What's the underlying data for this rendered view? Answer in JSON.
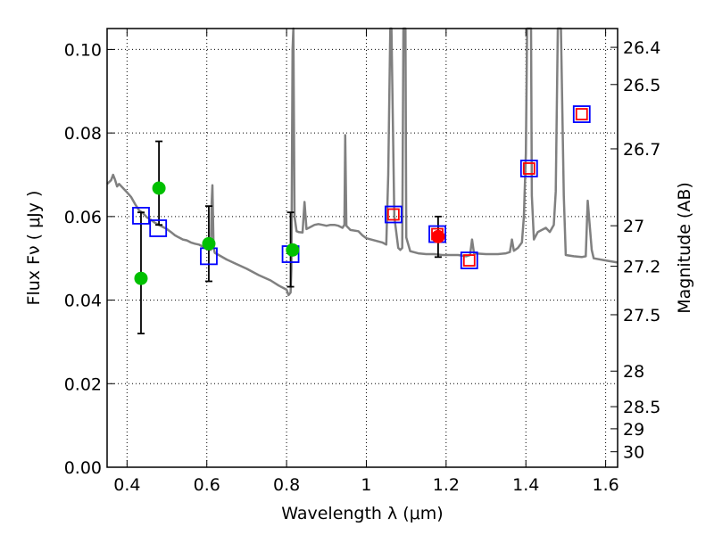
{
  "chart_data": {
    "type": "scatter",
    "xlabel": "Wavelength  λ (μm)",
    "ylabel": "Flux  Fν ( μJy )",
    "ylabel_right": "Magnitude (AB)",
    "xlim": [
      0.35,
      1.63
    ],
    "ylim": [
      0.0,
      0.105
    ],
    "grid": true,
    "x_ticks": [
      0.4,
      0.6,
      0.8,
      1.0,
      1.2,
      1.4,
      1.6
    ],
    "x_tick_labels": [
      "0.4",
      "0.6",
      "0.8",
      "1",
      "1.2",
      "1.4",
      "1.6"
    ],
    "y_ticks": [
      0.0,
      0.02,
      0.04,
      0.06,
      0.08,
      0.1
    ],
    "y_tick_labels": [
      "0.00",
      "0.02",
      "0.04",
      "0.06",
      "0.08",
      "0.10"
    ],
    "right_ticks": [
      {
        "label": "26.4",
        "flux": 0.1005
      },
      {
        "label": "26.5",
        "flux": 0.0916
      },
      {
        "label": "26.7",
        "flux": 0.0762
      },
      {
        "label": "27",
        "flux": 0.0578
      },
      {
        "label": "27.2",
        "flux": 0.0481
      },
      {
        "label": "27.5",
        "flux": 0.0365
      },
      {
        "label": "28",
        "flux": 0.023
      },
      {
        "label": "28.5",
        "flux": 0.0145
      },
      {
        "label": "29",
        "flux": 0.0092
      },
      {
        "label": "30",
        "flux": 0.0037
      }
    ],
    "series": [
      {
        "type": "line",
        "color": "#808080",
        "points": [
          [
            0.35,
            0.0678
          ],
          [
            0.36,
            0.0687
          ],
          [
            0.365,
            0.07
          ],
          [
            0.37,
            0.0688
          ],
          [
            0.375,
            0.0672
          ],
          [
            0.38,
            0.0678
          ],
          [
            0.39,
            0.0668
          ],
          [
            0.4,
            0.0658
          ],
          [
            0.41,
            0.0647
          ],
          [
            0.42,
            0.063
          ],
          [
            0.43,
            0.0615
          ],
          [
            0.44,
            0.0608
          ],
          [
            0.45,
            0.0598
          ],
          [
            0.46,
            0.0592
          ],
          [
            0.47,
            0.0585
          ],
          [
            0.48,
            0.058
          ],
          [
            0.49,
            0.0575
          ],
          [
            0.5,
            0.057
          ],
          [
            0.51,
            0.0563
          ],
          [
            0.52,
            0.0555
          ],
          [
            0.53,
            0.055
          ],
          [
            0.54,
            0.0545
          ],
          [
            0.55,
            0.0543
          ],
          [
            0.56,
            0.0538
          ],
          [
            0.57,
            0.0535
          ],
          [
            0.58,
            0.0533
          ],
          [
            0.59,
            0.0528
          ],
          [
            0.6,
            0.0522
          ],
          [
            0.61,
            0.052
          ],
          [
            0.612,
            0.063
          ],
          [
            0.614,
            0.0675
          ],
          [
            0.617,
            0.0525
          ],
          [
            0.62,
            0.0513
          ],
          [
            0.63,
            0.0508
          ],
          [
            0.65,
            0.0497
          ],
          [
            0.67,
            0.0488
          ],
          [
            0.7,
            0.0475
          ],
          [
            0.73,
            0.046
          ],
          [
            0.76,
            0.0447
          ],
          [
            0.78,
            0.0435
          ],
          [
            0.8,
            0.0425
          ],
          [
            0.805,
            0.0412
          ],
          [
            0.81,
            0.0418
          ],
          [
            0.812,
            0.0475
          ],
          [
            0.815,
            0.1
          ],
          [
            0.817,
            0.105
          ],
          [
            0.82,
            0.06
          ],
          [
            0.825,
            0.0565
          ],
          [
            0.83,
            0.0563
          ],
          [
            0.84,
            0.0562
          ],
          [
            0.845,
            0.0635
          ],
          [
            0.85,
            0.057
          ],
          [
            0.87,
            0.058
          ],
          [
            0.88,
            0.0582
          ],
          [
            0.89,
            0.058
          ],
          [
            0.9,
            0.0578
          ],
          [
            0.91,
            0.058
          ],
          [
            0.92,
            0.058
          ],
          [
            0.93,
            0.0578
          ],
          [
            0.94,
            0.0573
          ],
          [
            0.945,
            0.058
          ],
          [
            0.947,
            0.0795
          ],
          [
            0.95,
            0.0578
          ],
          [
            0.96,
            0.0568
          ],
          [
            0.98,
            0.0565
          ],
          [
            0.99,
            0.0555
          ],
          [
            1.0,
            0.0548
          ],
          [
            1.02,
            0.0543
          ],
          [
            1.04,
            0.0538
          ],
          [
            1.05,
            0.0533
          ],
          [
            1.055,
            0.07
          ],
          [
            1.06,
            0.105
          ],
          [
            1.063,
            0.105
          ],
          [
            1.07,
            0.06
          ],
          [
            1.08,
            0.0525
          ],
          [
            1.085,
            0.052
          ],
          [
            1.09,
            0.0525
          ],
          [
            1.093,
            0.105
          ],
          [
            1.098,
            0.105
          ],
          [
            1.1,
            0.055
          ],
          [
            1.11,
            0.0517
          ],
          [
            1.13,
            0.0512
          ],
          [
            1.15,
            0.051
          ],
          [
            1.17,
            0.051
          ],
          [
            1.19,
            0.0508
          ],
          [
            1.21,
            0.0508
          ],
          [
            1.23,
            0.0508
          ],
          [
            1.25,
            0.0505
          ],
          [
            1.26,
            0.0508
          ],
          [
            1.265,
            0.0545
          ],
          [
            1.27,
            0.0512
          ],
          [
            1.3,
            0.051
          ],
          [
            1.33,
            0.051
          ],
          [
            1.35,
            0.0512
          ],
          [
            1.36,
            0.0515
          ],
          [
            1.365,
            0.0545
          ],
          [
            1.37,
            0.0518
          ],
          [
            1.38,
            0.0525
          ],
          [
            1.39,
            0.0538
          ],
          [
            1.395,
            0.06
          ],
          [
            1.4,
            0.075
          ],
          [
            1.403,
            0.105
          ],
          [
            1.413,
            0.105
          ],
          [
            1.415,
            0.065
          ],
          [
            1.42,
            0.0545
          ],
          [
            1.43,
            0.0563
          ],
          [
            1.44,
            0.0568
          ],
          [
            1.45,
            0.0573
          ],
          [
            1.46,
            0.0563
          ],
          [
            1.47,
            0.058
          ],
          [
            1.475,
            0.066
          ],
          [
            1.48,
            0.105
          ],
          [
            1.488,
            0.105
          ],
          [
            1.495,
            0.065
          ],
          [
            1.5,
            0.0508
          ],
          [
            1.52,
            0.0505
          ],
          [
            1.54,
            0.0503
          ],
          [
            1.55,
            0.0505
          ],
          [
            1.555,
            0.0638
          ],
          [
            1.56,
            0.058
          ],
          [
            1.565,
            0.052
          ],
          [
            1.57,
            0.05
          ],
          [
            1.6,
            0.0495
          ],
          [
            1.63,
            0.049
          ]
        ]
      },
      {
        "type": "errorbars",
        "color": "#000000",
        "points": [
          {
            "x": 0.435,
            "low": 0.032,
            "high": 0.061
          },
          {
            "x": 0.48,
            "low": 0.058,
            "high": 0.078
          },
          {
            "x": 0.605,
            "low": 0.0445,
            "high": 0.0625
          },
          {
            "x": 0.81,
            "low": 0.0432,
            "high": 0.061
          },
          {
            "x": 1.18,
            "low": 0.0503,
            "high": 0.06
          }
        ]
      },
      {
        "type": "scatter",
        "marker": "square",
        "color": "#0000ff",
        "points": [
          {
            "x": 0.435,
            "y": 0.0602
          },
          {
            "x": 0.478,
            "y": 0.0572
          },
          {
            "x": 0.605,
            "y": 0.0505
          },
          {
            "x": 0.81,
            "y": 0.051
          },
          {
            "x": 1.068,
            "y": 0.0605
          },
          {
            "x": 1.178,
            "y": 0.0558
          },
          {
            "x": 1.258,
            "y": 0.0495
          },
          {
            "x": 1.408,
            "y": 0.0715
          },
          {
            "x": 1.54,
            "y": 0.0845
          }
        ]
      },
      {
        "type": "scatter",
        "marker": "square",
        "color": "#ff0000",
        "points": [
          {
            "x": 1.068,
            "y": 0.0605
          },
          {
            "x": 1.178,
            "y": 0.0558
          },
          {
            "x": 1.258,
            "y": 0.0495
          },
          {
            "x": 1.408,
            "y": 0.0715
          },
          {
            "x": 1.54,
            "y": 0.0845
          }
        ]
      },
      {
        "type": "scatter",
        "marker": "circle",
        "color": "#00c000",
        "points": [
          {
            "x": 0.435,
            "y": 0.0452
          },
          {
            "x": 0.48,
            "y": 0.0668
          },
          {
            "x": 0.605,
            "y": 0.0535
          },
          {
            "x": 0.815,
            "y": 0.052
          }
        ]
      },
      {
        "type": "scatter",
        "marker": "circle",
        "color": "#ff0000",
        "points": [
          {
            "x": 1.18,
            "y": 0.0552
          }
        ]
      }
    ]
  }
}
